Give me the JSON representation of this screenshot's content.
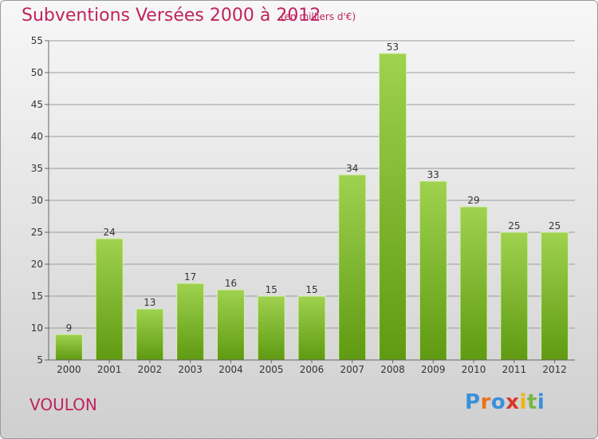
{
  "title": "Subventions Versées 2000 à 2012",
  "unit_note": "(en milliers d'€)",
  "commune": "VOULON",
  "logo": {
    "text": "Proxiti",
    "letter_colors": [
      "#3a8fd9",
      "#e8731a",
      "#3a8fd9",
      "#d9382a",
      "#f0b400",
      "#7ab648",
      "#3a8fd9"
    ]
  },
  "colors": {
    "title": "#c0235e",
    "bar_top": "#9fd24f",
    "bar_bottom": "#5f9a12",
    "grid": "#9a9a9a",
    "axis": "#666666"
  },
  "chart_data": {
    "type": "bar",
    "categories": [
      "2000",
      "2001",
      "2002",
      "2003",
      "2004",
      "2005",
      "2006",
      "2007",
      "2008",
      "2009",
      "2010",
      "2011",
      "2012"
    ],
    "values": [
      9,
      24,
      13,
      17,
      16,
      15,
      15,
      34,
      53,
      33,
      29,
      25,
      25
    ],
    "title": "Subventions Versées 2000 à 2012",
    "xlabel": "",
    "ylabel": "",
    "ylim": [
      5,
      55
    ],
    "yticks": [
      5,
      10,
      15,
      20,
      25,
      30,
      35,
      40,
      45,
      50,
      55
    ],
    "grid": true,
    "legend": "none"
  }
}
